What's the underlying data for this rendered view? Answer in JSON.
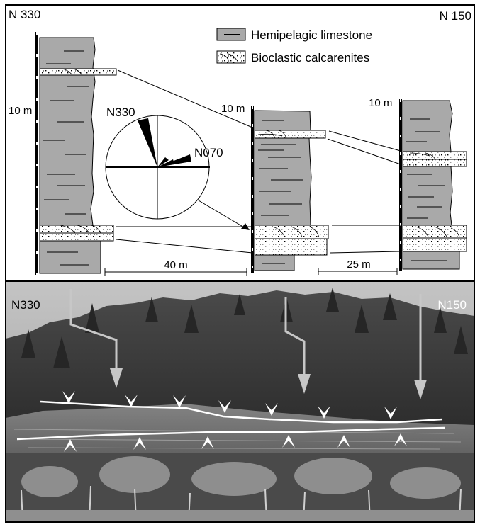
{
  "top_panel": {
    "corner_left": "N 330",
    "corner_right": "N 150",
    "legend": [
      {
        "label": "Hemipelagic limestone",
        "pattern": "lined-gray"
      },
      {
        "label": "Bioclastic calcarenites",
        "pattern": "dotted-white"
      }
    ],
    "scale_left": "10 m",
    "scale_middle": "10 m",
    "scale_right": "10 m",
    "rose": {
      "dir_a": "N330",
      "dir_b": "N070"
    },
    "distance_1": "40 m",
    "distance_2": "25 m"
  },
  "photo_panel": {
    "label_left": "N330",
    "label_right": "N150"
  },
  "colors": {
    "limestone": "#a9a9a9",
    "calcarenite": "#ffffff",
    "ink": "#000000",
    "photo_sky": "#b3b3b3",
    "photo_forest": "#3f3f3f",
    "photo_arrow": "#c7c7c7"
  }
}
